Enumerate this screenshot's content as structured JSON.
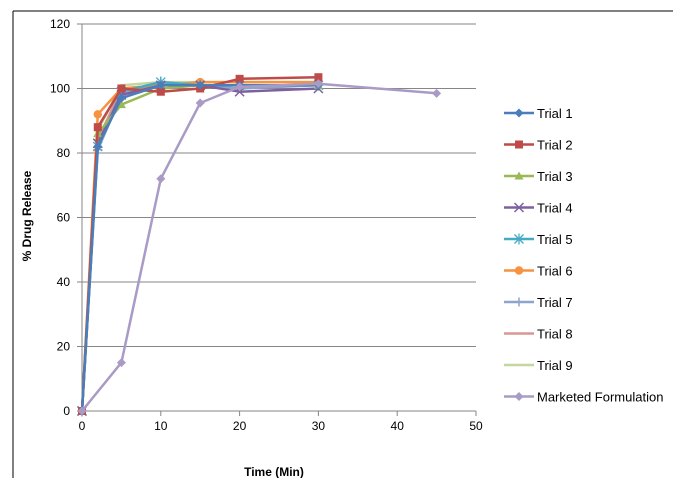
{
  "chart_data": {
    "type": "line",
    "title": "",
    "xlabel": "Time (Min)",
    "ylabel": "% Drug Release",
    "xlim": [
      0,
      50
    ],
    "ylim": [
      0,
      120
    ],
    "xticks": [
      0,
      10,
      20,
      30,
      40,
      50
    ],
    "yticks": [
      0,
      20,
      40,
      60,
      80,
      100,
      120
    ],
    "grid": "horizontal",
    "legend_position": "right",
    "series": [
      {
        "name": "Trial 1",
        "color": "#4A7EBB",
        "marker": "diamond",
        "x": [
          0,
          2,
          5,
          10,
          15,
          20,
          30
        ],
        "y": [
          0,
          82,
          97,
          101,
          101,
          101,
          101
        ]
      },
      {
        "name": "Trial 2",
        "color": "#BE4B48",
        "marker": "square",
        "x": [
          0,
          2,
          5,
          10,
          15,
          20,
          30
        ],
        "y": [
          0,
          88,
          100,
          99,
          100,
          103,
          103.5
        ]
      },
      {
        "name": "Trial 3",
        "color": "#98B954",
        "marker": "triangle",
        "x": [
          0,
          2,
          5,
          10,
          15,
          20,
          30
        ],
        "y": [
          0,
          86,
          95,
          100,
          101,
          101,
          101
        ]
      },
      {
        "name": "Trial 4",
        "color": "#7D60A0",
        "marker": "x",
        "x": [
          0,
          2,
          5,
          10,
          15,
          20,
          30
        ],
        "y": [
          0,
          83,
          98,
          101,
          101,
          99,
          100
        ]
      },
      {
        "name": "Trial 5",
        "color": "#46AAC5",
        "marker": "star",
        "x": [
          0,
          2,
          5,
          10,
          15,
          20,
          30
        ],
        "y": [
          0,
          82,
          99,
          102,
          101,
          101,
          101
        ]
      },
      {
        "name": "Trial 6",
        "color": "#F69240",
        "marker": "circle",
        "x": [
          0,
          2,
          5,
          10,
          15,
          20,
          30
        ],
        "y": [
          0,
          92,
          100,
          101,
          102,
          102,
          102
        ]
      },
      {
        "name": "Trial 7",
        "color": "#8EA5CB",
        "marker": "plus",
        "x": [
          0,
          2,
          5,
          10,
          15,
          20,
          30
        ],
        "y": [
          0,
          81,
          98,
          102,
          101,
          100,
          101
        ]
      },
      {
        "name": "Trial 8",
        "color": "#D99694",
        "marker": "none",
        "x": [
          0,
          2,
          5,
          10,
          15,
          20,
          30
        ],
        "y": [
          0,
          84,
          100,
          101,
          101,
          101,
          101
        ]
      },
      {
        "name": "Trial 9",
        "color": "#C3D69B",
        "marker": "none",
        "x": [
          0,
          2,
          5,
          10,
          15,
          20,
          30
        ],
        "y": [
          0,
          87,
          101,
          102,
          102,
          102,
          102
        ]
      },
      {
        "name": "Marketed Formulation",
        "color": "#A99BC5",
        "marker": "diamond",
        "x": [
          0,
          5,
          10,
          15,
          20,
          30,
          45
        ],
        "y": [
          0,
          15,
          72,
          95.5,
          100.5,
          101.5,
          98.5
        ]
      }
    ]
  }
}
